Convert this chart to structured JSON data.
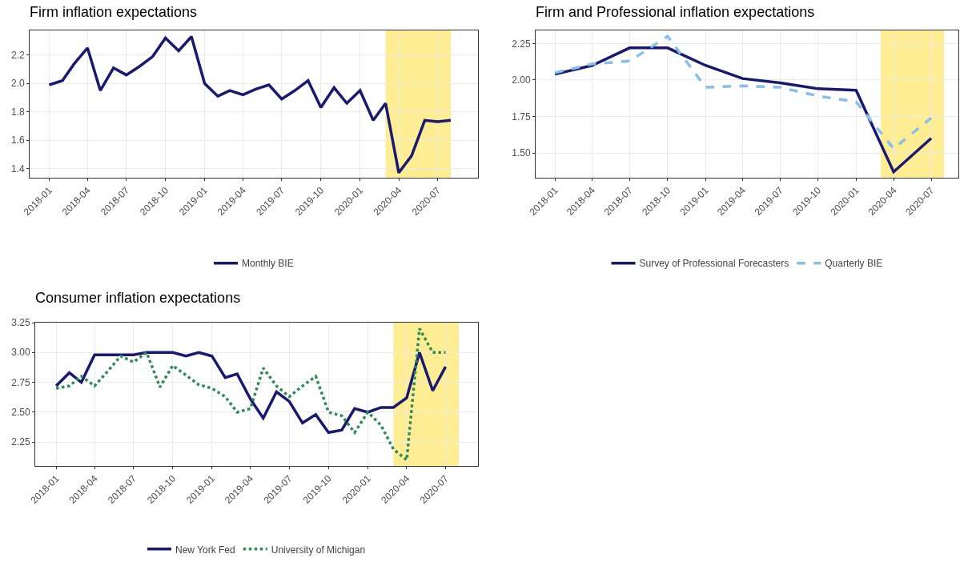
{
  "chart_data": [
    {
      "type": "line",
      "title": "Firm inflation expectations",
      "x": [
        "2018-01",
        "2018-02",
        "2018-03",
        "2018-04",
        "2018-05",
        "2018-06",
        "2018-07",
        "2018-08",
        "2018-09",
        "2018-10",
        "2018-11",
        "2018-12",
        "2019-01",
        "2019-02",
        "2019-03",
        "2019-04",
        "2019-05",
        "2019-06",
        "2019-07",
        "2019-08",
        "2019-09",
        "2019-10",
        "2019-11",
        "2019-12",
        "2020-01",
        "2020-02",
        "2020-03",
        "2020-04",
        "2020-05",
        "2020-06",
        "2020-07",
        "2020-08"
      ],
      "series": [
        {
          "name": "Monthly BIE",
          "color": "#191970",
          "line_style": "solid",
          "values": [
            1.99,
            2.02,
            2.14,
            2.25,
            1.95,
            2.11,
            2.06,
            2.12,
            2.19,
            2.32,
            2.23,
            2.33,
            2.0,
            1.91,
            1.95,
            1.92,
            1.96,
            1.99,
            1.89,
            1.95,
            2.02,
            1.83,
            1.97,
            1.86,
            1.95,
            1.74,
            1.86,
            1.37,
            1.49,
            1.74,
            1.73,
            1.74
          ]
        }
      ],
      "xlim": [
        "2017-11-16",
        "2020-10-04"
      ],
      "xticks": [
        "2018-01",
        "2018-04",
        "2018-07",
        "2018-10",
        "2019-01",
        "2019-04",
        "2019-07",
        "2019-10",
        "2020-01",
        "2020-04",
        "2020-07"
      ],
      "ylim": [
        1.335,
        2.374
      ],
      "yticks": [
        {
          "value": 1.4,
          "label": "1.4"
        },
        {
          "value": 1.6,
          "label": "1.6"
        },
        {
          "value": 1.8,
          "label": "1.8"
        },
        {
          "value": 2.0,
          "label": "2.0"
        },
        {
          "value": 2.2,
          "label": "2.2"
        }
      ],
      "bands": [
        {
          "axis": "x",
          "from": "2020-03",
          "to": "2020-08",
          "color": "#ffe566"
        }
      ],
      "grid": true,
      "legend": "bottom",
      "marker": "none"
    },
    {
      "type": "line",
      "title": "Firm and Professional inflation expectations",
      "x": [
        "2018-01",
        "2018-04",
        "2018-07",
        "2018-10",
        "2019-01",
        "2019-04",
        "2019-07",
        "2019-10",
        "2020-01",
        "2020-04",
        "2020-07"
      ],
      "series": [
        {
          "name": "Survey of Professional Forecasters",
          "color": "#191970",
          "line_style": "solid",
          "values": [
            2.04,
            2.1,
            2.22,
            2.22,
            2.1,
            2.01,
            1.98,
            1.94,
            1.93,
            1.37,
            1.6
          ]
        },
        {
          "name": "Quarterly BIE",
          "color": "#87bfea",
          "line_style": "dashed",
          "values": [
            2.05,
            2.11,
            2.13,
            2.3,
            1.95,
            1.96,
            1.95,
            1.89,
            1.85,
            1.53,
            1.74
          ]
        }
      ],
      "xlim": [
        "2017-11-15",
        "2020-09-05"
      ],
      "xticks": [
        "2018-01",
        "2018-04",
        "2018-07",
        "2018-10",
        "2019-01",
        "2019-04",
        "2019-07",
        "2019-10",
        "2020-01",
        "2020-04",
        "2020-07"
      ],
      "ylim": [
        1.33,
        2.34
      ],
      "yticks": [
        {
          "value": 1.5,
          "label": "1.50"
        },
        {
          "value": 1.75,
          "label": "1.75"
        },
        {
          "value": 2.0,
          "label": "2.00"
        },
        {
          "value": 2.25,
          "label": "2.25"
        }
      ],
      "bands": [
        {
          "axis": "x",
          "from": "2020-03",
          "to": "2020-08",
          "color": "#ffe566"
        }
      ],
      "grid": true,
      "legend": "bottom",
      "marker": "none"
    },
    {
      "type": "line",
      "title": "Consumer inflation expectations",
      "x": [
        "2018-01",
        "2018-02",
        "2018-03",
        "2018-04",
        "2018-05",
        "2018-06",
        "2018-07",
        "2018-08",
        "2018-09",
        "2018-10",
        "2018-11",
        "2018-12",
        "2019-01",
        "2019-02",
        "2019-03",
        "2019-04",
        "2019-05",
        "2019-06",
        "2019-07",
        "2019-08",
        "2019-09",
        "2019-10",
        "2019-11",
        "2019-12",
        "2020-01",
        "2020-02",
        "2020-03",
        "2020-04",
        "2020-05",
        "2020-06",
        "2020-07"
      ],
      "series": [
        {
          "name": "New York Fed",
          "color": "#191970",
          "line_style": "solid",
          "values": [
            2.72,
            2.83,
            2.75,
            2.98,
            2.98,
            2.98,
            2.98,
            3.0,
            3.0,
            3.0,
            2.97,
            3.0,
            2.97,
            2.79,
            2.82,
            2.61,
            2.45,
            2.67,
            2.59,
            2.41,
            2.48,
            2.33,
            2.35,
            2.53,
            2.5,
            2.54,
            2.54,
            2.62,
            3.0,
            2.68,
            2.88
          ]
        },
        {
          "name": "University of Michigan",
          "color": "#2e8b57",
          "line_style": "dotted",
          "values": [
            2.7,
            2.72,
            2.8,
            2.72,
            2.84,
            2.97,
            2.92,
            3.0,
            2.71,
            2.89,
            2.81,
            2.73,
            2.7,
            2.63,
            2.5,
            2.53,
            2.87,
            2.72,
            2.63,
            2.72,
            2.8,
            2.5,
            2.47,
            2.33,
            2.5,
            2.39,
            2.19,
            2.1,
            3.2,
            3.0,
            3.0
          ]
        }
      ],
      "xlim": [
        "2017-11-13",
        "2020-09-15"
      ],
      "xticks": [
        "2018-01",
        "2018-04",
        "2018-07",
        "2018-10",
        "2019-01",
        "2019-04",
        "2019-07",
        "2019-10",
        "2020-01",
        "2020-04",
        "2020-07"
      ],
      "ylim": [
        2.05,
        3.25
      ],
      "yticks": [
        {
          "value": 2.25,
          "label": "2.25"
        },
        {
          "value": 2.5,
          "label": "2.50"
        },
        {
          "value": 2.75,
          "label": "2.75"
        },
        {
          "value": 3.0,
          "label": "3.00"
        },
        {
          "value": 3.25,
          "label": "3.25"
        }
      ],
      "bands": [
        {
          "axis": "x",
          "from": "2020-03",
          "to": "2020-08",
          "color": "#ffe566"
        }
      ],
      "grid": true,
      "legend": "bottom",
      "marker": "none"
    }
  ]
}
